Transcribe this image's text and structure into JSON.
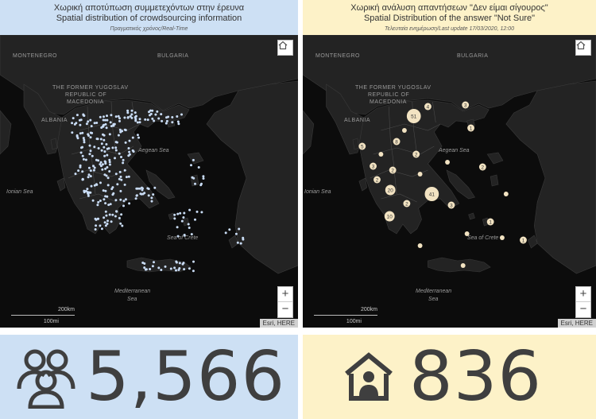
{
  "colors": {
    "left_bg": "#cde0f4",
    "right_bg": "#fdf2c8",
    "map_bg": "#0c0c0c",
    "land": "#232323",
    "left_point": "#c9dcf5",
    "right_cluster": "#f2e3c2",
    "number": "#3f3f3f"
  },
  "left_panel": {
    "title_gr": "Χωρική αποτύπωση συμμετεχόντων στην έρευνα",
    "title_en": "Spatial distribution of crowdsourcing information",
    "subtitle": "Πραγματικός χρόνος/Real-Time",
    "map": {
      "labels": {
        "montenegro": "MONTENEGRO",
        "bulgaria": "BULGARIA",
        "fyrom_1": "THE FORMER YUGOSLAV",
        "fyrom_2": "REPUBLIC OF",
        "fyrom_3": "MACEDONIA",
        "albania": "ALBANIA",
        "aegean": "Aegean Sea",
        "ionian": "Ionian Sea",
        "crete_sea": "Sea of Crete",
        "med_1": "Mediterranean",
        "med_2": "Sea"
      },
      "scale_km": "200km",
      "scale_mi": "100mi",
      "attribution": "Esri, HERE",
      "zoom_in": "+",
      "zoom_out": "−"
    },
    "stat_icon": "users-icon",
    "stat_value": "5,566"
  },
  "right_panel": {
    "title_gr": "Χωρική ανάλυση απαντήσεων \"Δεν είμαι σίγουρος\"",
    "title_en": "Spatial Distribution of the answer \"Not Sure\"",
    "subtitle": "Τελευταία ενημέρωση/Last update 17/03/2020, 12:00",
    "map": {
      "labels": {
        "montenegro": "MONTENEGRO",
        "bulgaria": "BULGARIA",
        "fyrom_1": "THE FORMER YUGOSLAV",
        "fyrom_2": "REPUBLIC OF",
        "fyrom_3": "MACEDONIA",
        "albania": "ALBANIA",
        "aegean": "Aegean Sea",
        "ionian": "Ionian Sea",
        "crete_sea": "Sea of Crete",
        "med_1": "Mediterranean",
        "med_2": "Sea"
      },
      "scale_km": "200km",
      "scale_mi": "100mi",
      "attribution": "Esri, HERE",
      "zoom_in": "+",
      "zoom_out": "−",
      "clusters": [
        "51",
        "41",
        "20",
        "10",
        "8",
        "5",
        "4",
        "3",
        "3",
        "3",
        "2",
        "2",
        "2",
        "2",
        "2",
        "1",
        "1",
        "1"
      ]
    },
    "stat_icon": "home-person-icon",
    "stat_value": "836"
  }
}
